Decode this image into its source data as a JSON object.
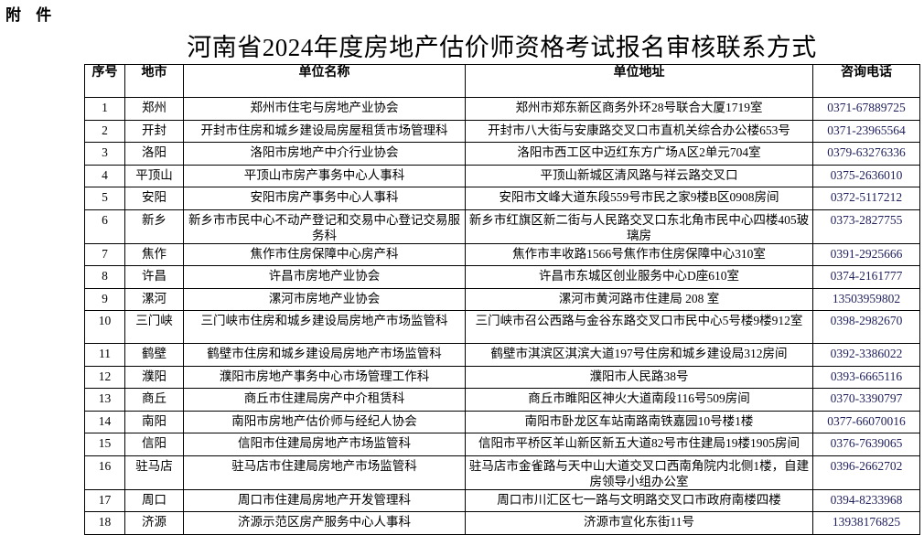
{
  "attachment_label": "附 件",
  "title": "河南省2024年度房地产估价师资格考试报名审核联系方式",
  "table": {
    "headers": [
      "序号",
      "地市",
      "单位名称",
      "单位地址",
      "咨询电话"
    ],
    "rows": [
      {
        "no": "1",
        "city": "郑州",
        "unit": "郑州市住宅与房地产业协会",
        "address": "郑州市郑东新区商务外环28号联合大厦1719室",
        "phone": "0371-67889725"
      },
      {
        "no": "2",
        "city": "开封",
        "unit": "开封市住房和城乡建设局房屋租赁市场管理科",
        "address": "开封市八大街与安康路交叉口市直机关综合办公楼653号",
        "phone": "0371-23965564"
      },
      {
        "no": "3",
        "city": "洛阳",
        "unit": "洛阳市房地产中介行业协会",
        "address": "洛阳市西工区中迈红东方广场A区2单元704室",
        "phone": "0379-63276336"
      },
      {
        "no": "4",
        "city": "平顶山",
        "unit": "平顶山市房产事务中心人事科",
        "address": "平顶山新城区清风路与祥云路交叉口",
        "phone": "0375-2636010"
      },
      {
        "no": "5",
        "city": "安阳",
        "unit": "安阳市房产事务中心人事科",
        "address": "安阳市文峰大道东段559号市民之家9楼B区0908房间",
        "phone": "0372-5117212"
      },
      {
        "no": "6",
        "city": "新乡",
        "unit": "新乡市市民中心不动产登记和交易中心登记交易服务科",
        "address": "新乡市红旗区新二街与人民路交叉口东北角市民中心四楼405玻璃房",
        "phone": "0373-2827755"
      },
      {
        "no": "7",
        "city": "焦作",
        "unit": "焦作市住房保障中心房产科",
        "address": "焦作市丰收路1566号焦作市住房保障中心310室",
        "phone": "0391-2925666"
      },
      {
        "no": "8",
        "city": "许昌",
        "unit": "许昌市房地产业协会",
        "address": "许昌市东城区创业服务中心D座610室",
        "phone": "0374-2161777"
      },
      {
        "no": "9",
        "city": "漯河",
        "unit": "漯河市房地产业协会",
        "address": "漯河市黄河路市住建局 208 室",
        "phone": "13503959802"
      },
      {
        "no": "10",
        "city": "三门峡",
        "unit": "三门峡市住房和城乡建设局房地产市场监管科",
        "address": "三门峡市召公西路与金谷东路交叉口市民中心5号楼9楼912室",
        "phone": "0398-2982670"
      },
      {
        "no": "11",
        "city": "鹤壁",
        "unit": "鹤壁市住房和城乡建设局房地产市场监管科",
        "address": "鹤壁市淇滨区淇滨大道197号住房和城乡建设局312房间",
        "phone": "0392-3386022"
      },
      {
        "no": "12",
        "city": "濮阳",
        "unit": "濮阳市房地产事务中心市场管理工作科",
        "address": "濮阳市人民路38号",
        "phone": "0393-6665116"
      },
      {
        "no": "13",
        "city": "商丘",
        "unit": "商丘市住建局房产中介租赁科",
        "address": "商丘市睢阳区神火大道南段116号509房间",
        "phone": "0370-3390797"
      },
      {
        "no": "14",
        "city": "南阳",
        "unit": "南阳市房地产估价师与经纪人协会",
        "address": "南阳市卧龙区车站南路南铁嘉园10号楼1楼",
        "phone": "0377-66070016"
      },
      {
        "no": "15",
        "city": "信阳",
        "unit": "信阳市住建局房地产市场监管科",
        "address": "信阳市平桥区羊山新区新五大道82号市住建局19楼1905房间",
        "phone": "0376-7639065"
      },
      {
        "no": "16",
        "city": "驻马店",
        "unit": "驻马店市住建局房地产市场监管科",
        "address": "驻马店市金雀路与天中山大道交叉口西南角院内北侧1楼，自建房领导小组办公室",
        "phone": "0396-2662702"
      },
      {
        "no": "17",
        "city": "周口",
        "unit": "周口市住建局房地产开发管理科",
        "address": "周口市川汇区七一路与文明路交叉口市政府南楼四楼",
        "phone": "0394-8233968"
      },
      {
        "no": "18",
        "city": "济源",
        "unit": "济源示范区房产服务中心人事科",
        "address": "济源市宣化东街11号",
        "phone": "13938176825"
      }
    ]
  }
}
